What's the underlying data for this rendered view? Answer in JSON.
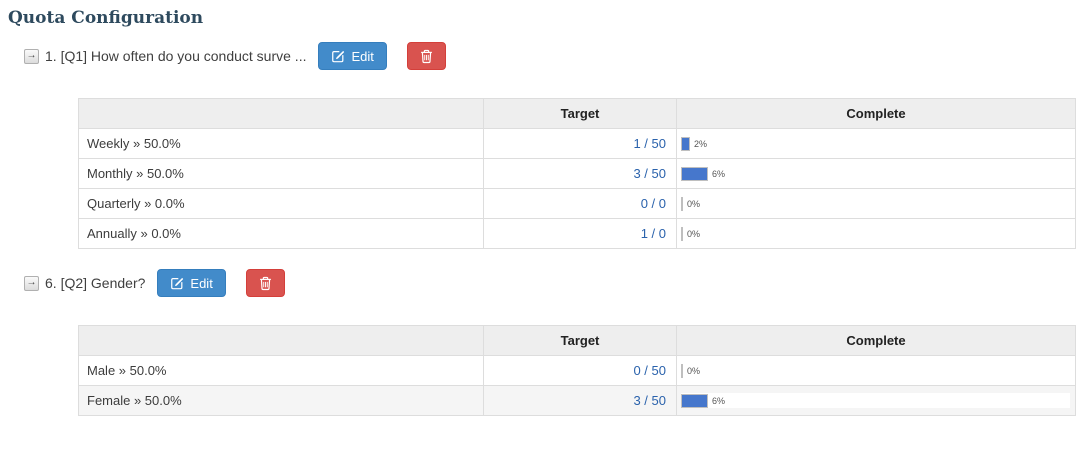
{
  "page": {
    "title": "Quota Configuration"
  },
  "icons": {
    "expand_arrow_glyph": "→"
  },
  "actions": {
    "edit_label": "Edit"
  },
  "table_headers": {
    "target": "Target",
    "complete": "Complete"
  },
  "colors": {
    "title": "#2e4a5e",
    "edit_button": "#428bca",
    "delete_button": "#d9534f",
    "bar_fill": "#4677cc",
    "target_link": "#2a62ac",
    "header_bg": "#eeeeee",
    "table_border": "#dddddd"
  },
  "sections": [
    {
      "question": "1. [Q1] How often do you conduct surve ...",
      "rows": [
        {
          "label": "Weekly » 50.0%",
          "target": "1 / 50",
          "percent": 2,
          "percent_label": "2%",
          "highlighted": false
        },
        {
          "label": "Monthly » 50.0%",
          "target": "3 / 50",
          "percent": 6,
          "percent_label": "6%",
          "highlighted": false
        },
        {
          "label": "Quarterly » 0.0%",
          "target": "0 / 0",
          "percent": 0,
          "percent_label": "0%",
          "highlighted": false
        },
        {
          "label": "Annually » 0.0%",
          "target": "1 / 0",
          "percent": 0,
          "percent_label": "0%",
          "highlighted": false
        }
      ]
    },
    {
      "question": "6. [Q2] Gender?",
      "rows": [
        {
          "label": "Male » 50.0%",
          "target": "0 / 50",
          "percent": 0,
          "percent_label": "0%",
          "highlighted": false
        },
        {
          "label": "Female » 50.0%",
          "target": "3 / 50",
          "percent": 6,
          "percent_label": "6%",
          "highlighted": true
        }
      ]
    }
  ]
}
